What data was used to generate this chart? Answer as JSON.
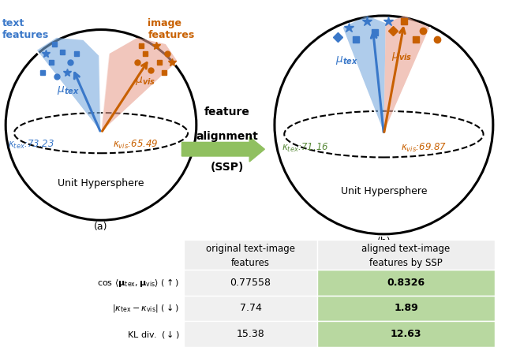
{
  "blue": "#3a78c9",
  "orange": "#c86000",
  "green_text": "#5a8a3a",
  "green_arrow": "#90c060",
  "blue_cone": "#7aabdf",
  "orange_cone": "#e8a090",
  "table_green": "#b8d8a0",
  "table_gray": "#f0f0f0",
  "kappa_tex_a": "κ_tex:73.23",
  "kappa_vis_a": "κ_vis:65.49",
  "kappa_tex_b": "κ_tex:71.16",
  "kappa_vis_b": "κ_vis:69.87"
}
